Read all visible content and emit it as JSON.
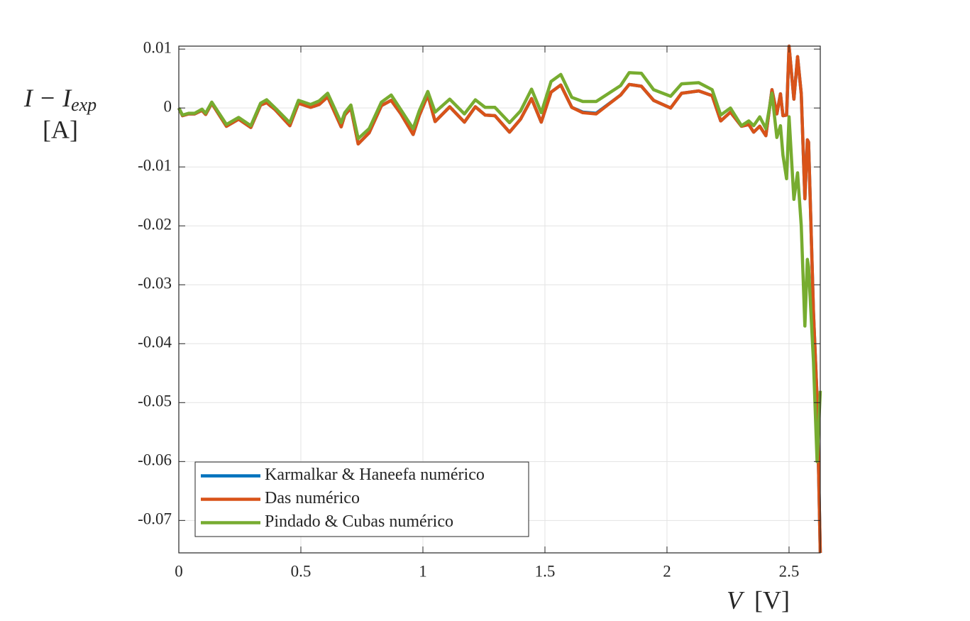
{
  "chart_data": {
    "type": "line",
    "ylabel": "I − I",
    "ylabel_subscript": "exp",
    "ylabel_unit": "[A]",
    "xlabel": "V",
    "xlabel_unit": "[V]",
    "xlim": [
      0,
      2.628
    ],
    "ylim": [
      -0.0755,
      0.0105
    ],
    "xticks": [
      0,
      0.5,
      1,
      1.5,
      2,
      2.5
    ],
    "yticks": [
      0.01,
      0,
      -0.01,
      -0.02,
      -0.03,
      -0.04,
      -0.05,
      -0.06,
      -0.07
    ],
    "grid": true,
    "legend_position": "lower-left",
    "x": [
      0,
      0.015,
      0.04,
      0.065,
      0.095,
      0.11,
      0.135,
      0.195,
      0.245,
      0.295,
      0.335,
      0.36,
      0.395,
      0.455,
      0.49,
      0.54,
      0.575,
      0.61,
      0.665,
      0.68,
      0.705,
      0.735,
      0.78,
      0.83,
      0.87,
      0.91,
      0.96,
      0.985,
      1.02,
      1.05,
      1.11,
      1.17,
      1.215,
      1.255,
      1.295,
      1.355,
      1.4,
      1.445,
      1.485,
      1.525,
      1.565,
      1.61,
      1.655,
      1.71,
      1.81,
      1.845,
      1.895,
      1.945,
      2.015,
      2.06,
      2.13,
      2.185,
      2.22,
      2.26,
      2.305,
      2.335,
      2.355,
      2.38,
      2.405,
      2.43,
      2.45,
      2.465,
      2.475,
      2.49,
      2.5,
      2.52,
      2.535,
      2.55,
      2.565,
      2.575,
      2.58,
      2.6,
      2.615,
      2.628
    ],
    "series": [
      {
        "name": "Karmalkar & Haneefa numérico",
        "color": "#0072bd",
        "values": [
          0,
          -0.0013,
          -0.001,
          -0.001,
          -0.0004,
          -0.0011,
          0.0008,
          -0.0031,
          -0.0019,
          -0.0033,
          0.0005,
          0.0009,
          -0.0003,
          -0.003,
          0.0008,
          0.0001,
          0.0006,
          0.0019,
          -0.0032,
          -0.0012,
          0,
          -0.0061,
          -0.0042,
          0.0004,
          0.0013,
          -0.001,
          -0.0045,
          -0.0013,
          0.0022,
          -0.0023,
          0.0002,
          -0.0024,
          0.0002,
          -0.0012,
          -0.0013,
          -0.0041,
          -0.0019,
          0.0016,
          -0.0024,
          0.0027,
          0.0039,
          0.0001,
          -0.0007,
          -0.0009,
          0.0022,
          0.004,
          0.0037,
          0.0013,
          0,
          0.0025,
          0.0029,
          0.0021,
          -0.0022,
          -0.0007,
          -0.0031,
          -0.0028,
          -0.0041,
          -0.0031,
          -0.0047,
          0.0031,
          -0.001,
          0.0024,
          -0.0013,
          -0.0012,
          0.0105,
          0.0015,
          0.0087,
          0.0024,
          -0.0154,
          -0.0054,
          -0.0058,
          -0.0347,
          -0.0492,
          -0.0755
        ]
      },
      {
        "name": "Das numérico",
        "color": "#d95319",
        "values": [
          0,
          -0.0013,
          -0.001,
          -0.001,
          -0.0004,
          -0.0011,
          0.0008,
          -0.0031,
          -0.0019,
          -0.0033,
          0.0005,
          0.0009,
          -0.0003,
          -0.003,
          0.0008,
          0.0001,
          0.0006,
          0.0019,
          -0.0032,
          -0.0012,
          0,
          -0.0061,
          -0.0042,
          0.0004,
          0.0013,
          -0.001,
          -0.0045,
          -0.0013,
          0.0022,
          -0.0023,
          0.0002,
          -0.0024,
          0.0002,
          -0.0012,
          -0.0013,
          -0.0041,
          -0.0019,
          0.0016,
          -0.0024,
          0.0027,
          0.0039,
          0.0001,
          -0.0008,
          -0.001,
          0.0022,
          0.004,
          0.0037,
          0.0013,
          0,
          0.0025,
          0.0029,
          0.0021,
          -0.0022,
          -0.0007,
          -0.0031,
          -0.0028,
          -0.0041,
          -0.0031,
          -0.0047,
          0.0031,
          -0.001,
          0.0024,
          -0.0013,
          -0.0012,
          0.0105,
          0.0015,
          0.0087,
          0.0024,
          -0.0154,
          -0.0054,
          -0.0058,
          -0.0347,
          -0.0492,
          -0.0755
        ]
      },
      {
        "name": "Pindado & Cubas numérico",
        "color": "#77ac30",
        "values": [
          0,
          -0.0012,
          -0.0009,
          -0.0009,
          -0.0002,
          -0.0009,
          0.001,
          -0.0028,
          -0.0016,
          -0.003,
          0.0008,
          0.0014,
          0,
          -0.0025,
          0.0013,
          0.0006,
          0.0012,
          0.0025,
          -0.0025,
          -0.0008,
          0.0005,
          -0.0052,
          -0.0035,
          0.001,
          0.0022,
          -0.0003,
          -0.0035,
          -0.0005,
          0.0028,
          -0.0007,
          0.0015,
          -0.001,
          0.0014,
          0.0001,
          0.0001,
          -0.0025,
          -0.0005,
          0.0032,
          -0.0008,
          0.0045,
          0.0057,
          0.0018,
          0.0011,
          0.0011,
          0.0038,
          0.006,
          0.0059,
          0.0031,
          0.002,
          0.0041,
          0.0043,
          0.0031,
          -0.0012,
          0,
          -0.003,
          -0.0022,
          -0.003,
          -0.0015,
          -0.0035,
          0.0025,
          -0.005,
          -0.003,
          -0.008,
          -0.012,
          -0.0015,
          -0.0155,
          -0.011,
          -0.02,
          -0.037,
          -0.0257,
          -0.027,
          -0.043,
          -0.06,
          -0.048
        ]
      }
    ]
  }
}
